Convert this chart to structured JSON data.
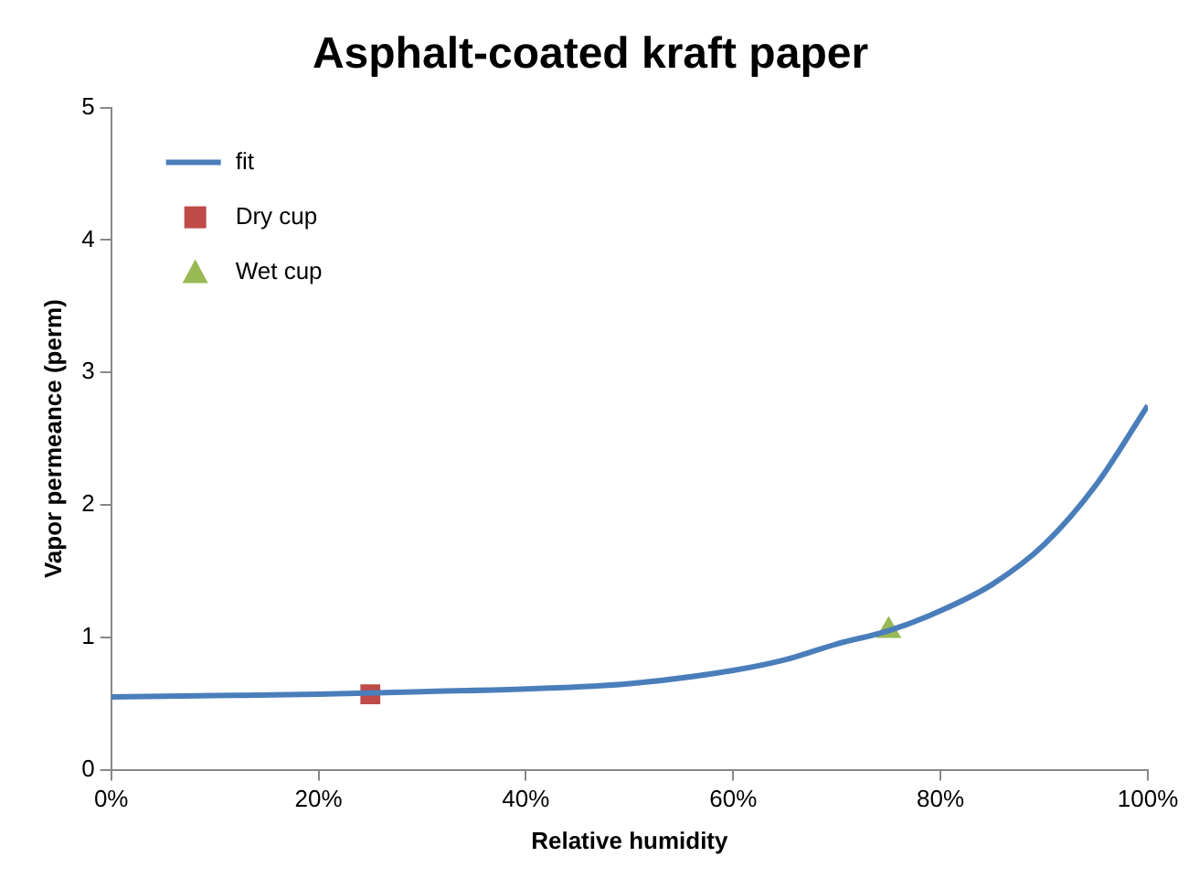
{
  "chart_data": {
    "type": "line",
    "title": "Asphalt-coated kraft paper",
    "xlabel": "Relative humidity",
    "ylabel": "Vapor permeance (perm)",
    "xlim": [
      0,
      100
    ],
    "xticks": [
      {
        "value": 0,
        "label": "0%"
      },
      {
        "value": 20,
        "label": "20%"
      },
      {
        "value": 40,
        "label": "40%"
      },
      {
        "value": 60,
        "label": "60%"
      },
      {
        "value": 80,
        "label": "80%"
      },
      {
        "value": 100,
        "label": "100%"
      }
    ],
    "ylim": [
      0,
      5
    ],
    "yticks": [
      0,
      1,
      2,
      3,
      4,
      5
    ],
    "grid": false,
    "legend": "top left",
    "series": [
      {
        "name": "fit",
        "type": "line",
        "color": "#4a7ebb",
        "marker": "none",
        "line_style": "solid",
        "x": [
          0,
          10,
          20,
          30,
          40,
          50,
          60,
          65,
          70,
          75,
          80,
          85,
          90,
          95,
          100
        ],
        "values": [
          0.55,
          0.56,
          0.57,
          0.59,
          0.61,
          0.65,
          0.75,
          0.83,
          0.95,
          1.05,
          1.2,
          1.4,
          1.7,
          2.15,
          2.75
        ]
      },
      {
        "name": "Dry cup",
        "type": "scatter",
        "color": "#be4b48",
        "marker": "square",
        "x": [
          25
        ],
        "values": [
          0.57
        ]
      },
      {
        "name": "Wet cup",
        "type": "scatter",
        "color": "#98b954",
        "marker": "triangle",
        "x": [
          75
        ],
        "values": [
          1.05
        ]
      }
    ]
  }
}
